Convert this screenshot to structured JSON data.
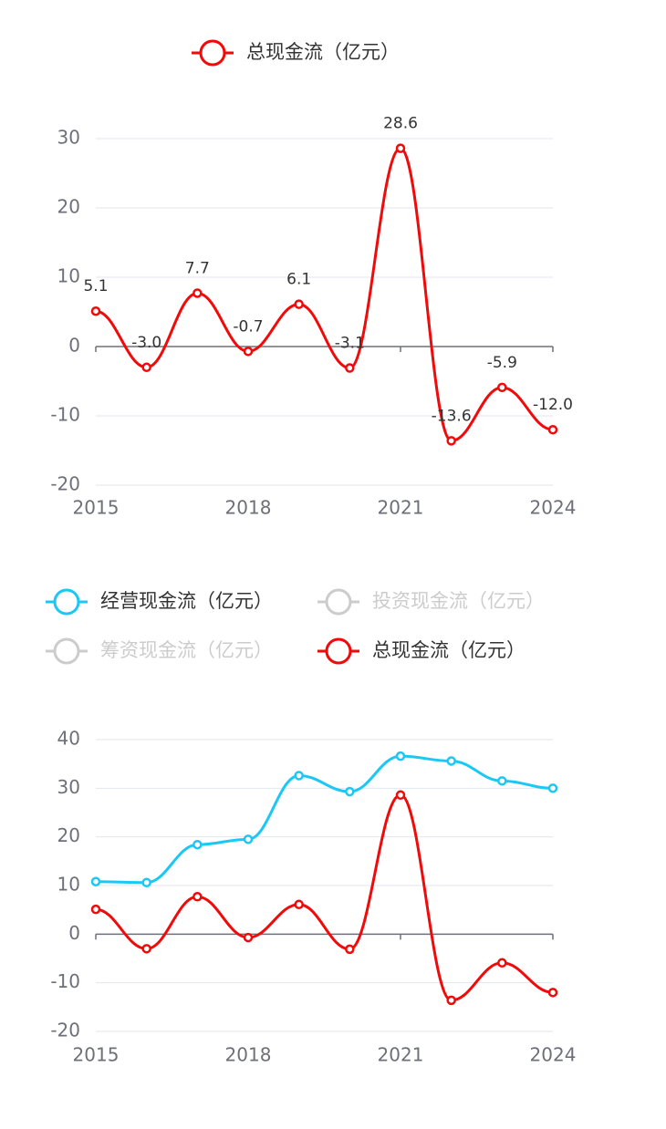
{
  "chart_data": [
    {
      "type": "line",
      "smooth": true,
      "categories": [
        "2015",
        null,
        null,
        "2018",
        null,
        null,
        "2021",
        null,
        null,
        "2024"
      ],
      "series": [
        {
          "name": "总现金流（亿元）",
          "color": "#f00a0a",
          "values": [
            5.1,
            -3.0,
            7.7,
            -0.7,
            6.1,
            -3.1,
            28.6,
            -13.6,
            -5.9,
            -12.0
          ],
          "value_labels": [
            "5.1",
            "-3.0",
            "7.7",
            "-0.7",
            "6.1",
            "-3.1",
            "28.6",
            "-13.6",
            "-5.9",
            "-12.0"
          ]
        }
      ],
      "ylim": [
        -20,
        30
      ],
      "yticks": [
        -20,
        -10,
        0,
        10,
        20,
        30
      ],
      "grid": true
    },
    {
      "type": "line",
      "smooth": true,
      "categories": [
        "2015",
        null,
        null,
        "2018",
        null,
        null,
        "2021",
        null,
        null,
        "2024"
      ],
      "series": [
        {
          "name": "经营现金流（亿元）",
          "color": "#1bc8f5",
          "values": [
            10.8,
            10.6,
            18.4,
            19.5,
            32.6,
            29.3,
            36.6,
            35.6,
            31.5,
            30.0
          ]
        },
        {
          "name": "投资现金流（亿元）",
          "color": "#cccccc",
          "hidden": true
        },
        {
          "name": "筹资现金流（亿元）",
          "color": "#cccccc",
          "hidden": true
        },
        {
          "name": "总现金流（亿元）",
          "color": "#f00a0a",
          "values": [
            5.1,
            -3.0,
            7.7,
            -0.7,
            6.1,
            -3.1,
            28.6,
            -13.6,
            -5.9,
            -12.0
          ]
        }
      ],
      "ylim": [
        -20,
        40
      ],
      "yticks": [
        -20,
        -10,
        0,
        10,
        20,
        30,
        40
      ],
      "grid": true
    }
  ]
}
